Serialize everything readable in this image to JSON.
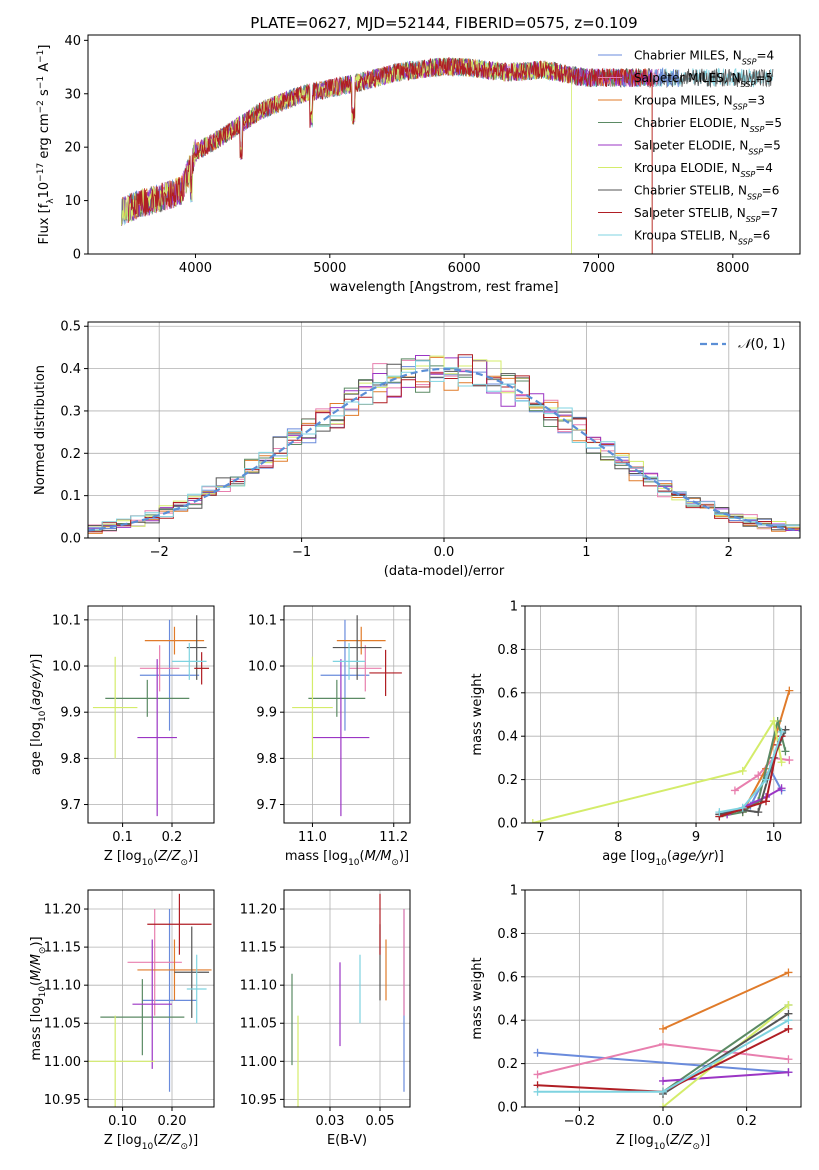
{
  "figure_title": "PLATE=0627, MJD=52144, FIBERID=0575, z=0.109",
  "colors": {
    "Chabrier MILES": "#6a8bdc",
    "Salpeter MILES": "#e87fae",
    "Kroupa MILES": "#e07b2a",
    "Chabrier ELODIE": "#5b8a64",
    "Salpeter ELODIE": "#9b35c4",
    "Kroupa ELODIE": "#d4ec6a",
    "Chabrier STELIB": "#555555",
    "Salpeter STELIB": "#b01e24",
    "Kroupa STELIB": "#7fd3e0",
    "gauss": "#5b8fd6"
  },
  "chart_data": [
    {
      "id": "spectrum",
      "type": "line",
      "title": "PLATE=0627, MJD=52144, FIBERID=0575, z=0.109",
      "xlabel": "wavelength [Angstrom, rest frame]",
      "ylabel": "Flux [f_λ 10^-17 erg cm^-2 s^-1 A^-1]",
      "xlim": [
        3200,
        8500
      ],
      "ylim": [
        0,
        41
      ],
      "xticks": [
        4000,
        5000,
        6000,
        7000,
        8000
      ],
      "yticks": [
        0,
        10,
        20,
        30,
        40
      ],
      "legend_position": "upper-right",
      "legend": [
        {
          "label": "Chabrier MILES, N",
          "sub": "SSP",
          "val": "=4"
        },
        {
          "label": "Salpeter MILES, N",
          "sub": "SSP",
          "val": "=5"
        },
        {
          "label": "Kroupa MILES, N",
          "sub": "SSP",
          "val": "=3"
        },
        {
          "label": "Chabrier ELODIE, N",
          "sub": "SSP",
          "val": "=5"
        },
        {
          "label": "Salpeter ELODIE, N",
          "sub": "SSP",
          "val": "=5"
        },
        {
          "label": "Kroupa ELODIE, N",
          "sub": "SSP",
          "val": "=4"
        },
        {
          "label": "Chabrier STELIB, N",
          "sub": "SSP",
          "val": "=6"
        },
        {
          "label": "Salpeter STELIB, N",
          "sub": "SSP",
          "val": "=7"
        },
        {
          "label": "Kroupa STELIB, N",
          "sub": "SSP",
          "val": "=6"
        }
      ],
      "continuum": [
        [
          3450,
          8
        ],
        [
          3600,
          9.5
        ],
        [
          3800,
          11
        ],
        [
          3900,
          12
        ],
        [
          4000,
          19
        ],
        [
          4200,
          22
        ],
        [
          4500,
          27
        ],
        [
          4800,
          30
        ],
        [
          5000,
          31
        ],
        [
          5200,
          32
        ],
        [
          5500,
          34
        ],
        [
          5800,
          35
        ],
        [
          6000,
          35
        ],
        [
          6300,
          34
        ],
        [
          6600,
          34.5
        ],
        [
          6900,
          33
        ],
        [
          7200,
          33
        ],
        [
          7600,
          33
        ],
        [
          8000,
          33
        ],
        [
          8300,
          33
        ]
      ],
      "series_xrange": [
        [
          3450,
          7600
        ],
        [
          3450,
          7450
        ],
        [
          3450,
          7400
        ],
        [
          3450,
          7350
        ],
        [
          3450,
          7400
        ],
        [
          3450,
          6800
        ],
        [
          3450,
          8300
        ],
        [
          3500,
          7400
        ],
        [
          3450,
          8300
        ]
      ]
    },
    {
      "id": "residuals",
      "type": "histogram",
      "xlabel": "(data-model)/error",
      "ylabel": "Normed distribution",
      "xlim": [
        -2.5,
        2.5
      ],
      "ylim": [
        0,
        0.51
      ],
      "xticks": [
        -2,
        -1,
        0,
        1,
        2
      ],
      "yticks": [
        0.0,
        0.1,
        0.2,
        0.3,
        0.4,
        0.5
      ],
      "legend_position": "upper-right",
      "legend_label": "N(0,1)",
      "bin_width": 0.1
    },
    {
      "id": "age_vs_Z",
      "type": "errorbar",
      "xlabel": "Z [log10(Z/Z☉)]",
      "ylabel": "age [log10(age/yr)]",
      "xlim": [
        0.03,
        0.285
      ],
      "ylim": [
        9.66,
        10.13
      ],
      "xticks": [
        0.1,
        0.2
      ],
      "yticks": [
        9.7,
        9.8,
        9.9,
        10.0,
        10.1
      ],
      "points": [
        {
          "x": 0.195,
          "y": 9.98,
          "xerr": 0.06,
          "yerr": 0.12
        },
        {
          "x": 0.175,
          "y": 9.995,
          "xerr": 0.04,
          "yerr": 0.05
        },
        {
          "x": 0.205,
          "y": 10.055,
          "xerr": 0.06,
          "yerr": 0.03
        },
        {
          "x": 0.15,
          "y": 9.93,
          "xerr": 0.085,
          "yerr": 0.04
        },
        {
          "x": 0.17,
          "y": 9.845,
          "xerr": 0.04,
          "yerr": 0.17
        },
        {
          "x": 0.085,
          "y": 9.91,
          "xerr": 0.045,
          "yerr": 0.11
        },
        {
          "x": 0.25,
          "y": 10.04,
          "xerr": 0.02,
          "yerr": 0.07
        },
        {
          "x": 0.26,
          "y": 9.995,
          "xerr": 0.015,
          "yerr": 0.035
        },
        {
          "x": 0.235,
          "y": 10.01,
          "xerr": 0.035,
          "yerr": 0.04
        }
      ]
    },
    {
      "id": "age_vs_mass",
      "type": "errorbar",
      "xlabel": "mass [log10(M/M☉)]",
      "ylabel": "",
      "xlim": [
        10.93,
        11.24
      ],
      "ylim": [
        9.66,
        10.13
      ],
      "xticks": [
        11.0,
        11.2
      ],
      "yticks": [
        9.7,
        9.8,
        9.9,
        10.0,
        10.1
      ],
      "points": [
        {
          "x": 11.08,
          "y": 9.98,
          "xerr": 0.06,
          "yerr": 0.12
        },
        {
          "x": 11.13,
          "y": 9.995,
          "xerr": 0.04,
          "yerr": 0.05
        },
        {
          "x": 11.12,
          "y": 10.055,
          "xerr": 0.06,
          "yerr": 0.03
        },
        {
          "x": 11.06,
          "y": 9.93,
          "xerr": 0.07,
          "yerr": 0.04
        },
        {
          "x": 11.07,
          "y": 9.845,
          "xerr": 0.07,
          "yerr": 0.17
        },
        {
          "x": 11.0,
          "y": 9.91,
          "xerr": 0.05,
          "yerr": 0.11
        },
        {
          "x": 11.11,
          "y": 10.04,
          "xerr": 0.06,
          "yerr": 0.07
        },
        {
          "x": 11.18,
          "y": 9.985,
          "xerr": 0.04,
          "yerr": 0.05
        },
        {
          "x": 11.09,
          "y": 10.01,
          "xerr": 0.04,
          "yerr": 0.04
        }
      ]
    },
    {
      "id": "weight_vs_age",
      "type": "line",
      "xlabel": "age [log10(age/yr)]",
      "ylabel": "mass weight",
      "xlim": [
        6.8,
        10.35
      ],
      "ylim": [
        0,
        1
      ],
      "xticks": [
        7,
        8,
        9,
        10
      ],
      "yticks": [
        0.0,
        0.2,
        0.4,
        0.6,
        0.8,
        1.0
      ],
      "series": [
        {
          "values": [
            [
              9.3,
              0.04
            ],
            [
              9.7,
              0.08
            ],
            [
              9.95,
              0.25
            ],
            [
              10.1,
              0.15
            ]
          ]
        },
        {
          "values": [
            [
              9.5,
              0.15
            ],
            [
              9.8,
              0.22
            ],
            [
              10.0,
              0.3
            ],
            [
              10.2,
              0.29
            ]
          ]
        },
        {
          "values": [
            [
              9.6,
              0.05
            ],
            [
              9.9,
              0.25
            ],
            [
              10.2,
              0.61
            ]
          ]
        },
        {
          "values": [
            [
              9.3,
              0.03
            ],
            [
              9.6,
              0.05
            ],
            [
              9.8,
              0.1
            ],
            [
              10.05,
              0.47
            ],
            [
              10.15,
              0.33
            ]
          ]
        },
        {
          "values": [
            [
              9.4,
              0.04
            ],
            [
              9.9,
              0.12
            ],
            [
              10.1,
              0.16
            ]
          ]
        },
        {
          "values": [
            [
              6.9,
              0.0
            ],
            [
              9.6,
              0.24
            ],
            [
              10.0,
              0.47
            ],
            [
              10.1,
              0.28
            ]
          ]
        },
        {
          "values": [
            [
              9.3,
              0.04
            ],
            [
              9.6,
              0.06
            ],
            [
              9.8,
              0.05
            ],
            [
              10.0,
              0.3
            ],
            [
              10.15,
              0.43
            ]
          ]
        },
        {
          "values": [
            [
              9.3,
              0.03
            ],
            [
              9.9,
              0.1
            ],
            [
              10.05,
              0.36
            ],
            [
              10.1,
              0.4
            ]
          ]
        },
        {
          "values": [
            [
              9.3,
              0.05
            ],
            [
              9.6,
              0.07
            ],
            [
              9.9,
              0.2
            ],
            [
              10.1,
              0.42
            ]
          ]
        }
      ]
    },
    {
      "id": "mass_vs_Z",
      "type": "errorbar",
      "xlabel": "Z [log10(Z/Z☉)]",
      "ylabel": "mass [log10(M/M☉)]",
      "xlim": [
        0.03,
        0.285
      ],
      "ylim": [
        10.94,
        11.225
      ],
      "xticks": [
        0.1,
        0.2
      ],
      "yticks": [
        10.95,
        11.0,
        11.05,
        11.1,
        11.15,
        11.2
      ],
      "points": [
        {
          "x": 0.195,
          "y": 11.08,
          "xerr": 0.055,
          "yerr": 0.12
        },
        {
          "x": 0.165,
          "y": 11.13,
          "xerr": 0.055,
          "yerr": 0.07
        },
        {
          "x": 0.205,
          "y": 11.12,
          "xerr": 0.075,
          "yerr": 0.04
        },
        {
          "x": 0.14,
          "y": 11.058,
          "xerr": 0.085,
          "yerr": 0.05
        },
        {
          "x": 0.16,
          "y": 11.075,
          "xerr": 0.04,
          "yerr": 0.085
        },
        {
          "x": 0.085,
          "y": 11.0,
          "xerr": 0.08,
          "yerr": 0.06
        },
        {
          "x": 0.24,
          "y": 11.117,
          "xerr": 0.035,
          "yerr": 0.06
        },
        {
          "x": 0.215,
          "y": 11.18,
          "xerr": 0.065,
          "yerr": 0.04
        },
        {
          "x": 0.25,
          "y": 11.095,
          "xerr": 0.02,
          "yerr": 0.045
        }
      ]
    },
    {
      "id": "mass_vs_ebv",
      "type": "errorbar",
      "xlabel": "E(B-V)",
      "ylabel": "",
      "xlim": [
        0.002,
        0.065
      ],
      "ylim": [
        10.94,
        11.225
      ],
      "xticks": [
        0.025,
        0.05
      ],
      "yticks": [
        10.95,
        11.0,
        11.05,
        11.1,
        11.15,
        11.2
      ],
      "points": [
        {
          "x": 0.062,
          "y": 11.08,
          "xerr": 0,
          "yerr": 0.12
        },
        {
          "x": 0.062,
          "y": 11.13,
          "xerr": 0,
          "yerr": 0.07
        },
        {
          "x": 0.053,
          "y": 11.12,
          "xerr": 0,
          "yerr": 0.04
        },
        {
          "x": 0.006,
          "y": 11.055,
          "xerr": 0,
          "yerr": 0.06
        },
        {
          "x": 0.03,
          "y": 11.075,
          "xerr": 0,
          "yerr": 0.055
        },
        {
          "x": 0.009,
          "y": 11.0,
          "xerr": 0,
          "yerr": 0.06
        },
        {
          "x": 0.05,
          "y": 11.13,
          "xerr": 0,
          "yerr": 0.05
        },
        {
          "x": 0.05,
          "y": 11.18,
          "xerr": 0,
          "yerr": 0.04
        },
        {
          "x": 0.04,
          "y": 11.095,
          "xerr": 0,
          "yerr": 0.045
        }
      ]
    },
    {
      "id": "weight_vs_Z",
      "type": "line",
      "xlabel": "Z [log10(Z/Z☉)]",
      "ylabel": "mass weight",
      "xlim": [
        -0.33,
        0.33
      ],
      "ylim": [
        0,
        1
      ],
      "xticks": [
        -0.2,
        0.0,
        0.2
      ],
      "yticks": [
        0.0,
        0.2,
        0.4,
        0.6,
        0.8,
        1.0
      ],
      "series": [
        {
          "values": [
            [
              -0.3,
              0.25
            ],
            [
              0.3,
              0.16
            ]
          ]
        },
        {
          "values": [
            [
              -0.3,
              0.15
            ],
            [
              0.0,
              0.29
            ],
            [
              0.3,
              0.22
            ]
          ]
        },
        {
          "values": [
            [
              0.0,
              0.36
            ],
            [
              0.3,
              0.62
            ]
          ]
        },
        {
          "values": [
            [
              0.0,
              0.07
            ],
            [
              0.3,
              0.47
            ]
          ]
        },
        {
          "values": [
            [
              0.0,
              0.12
            ],
            [
              0.3,
              0.16
            ]
          ]
        },
        {
          "values": [
            [
              0.0,
              0.0
            ],
            [
              0.3,
              0.47
            ]
          ]
        },
        {
          "values": [
            [
              0.0,
              0.06
            ],
            [
              0.3,
              0.43
            ]
          ]
        },
        {
          "values": [
            [
              -0.3,
              0.1
            ],
            [
              0.0,
              0.07
            ],
            [
              0.3,
              0.36
            ]
          ]
        },
        {
          "values": [
            [
              -0.3,
              0.07
            ],
            [
              0.0,
              0.07
            ],
            [
              0.3,
              0.4
            ]
          ]
        }
      ]
    }
  ]
}
